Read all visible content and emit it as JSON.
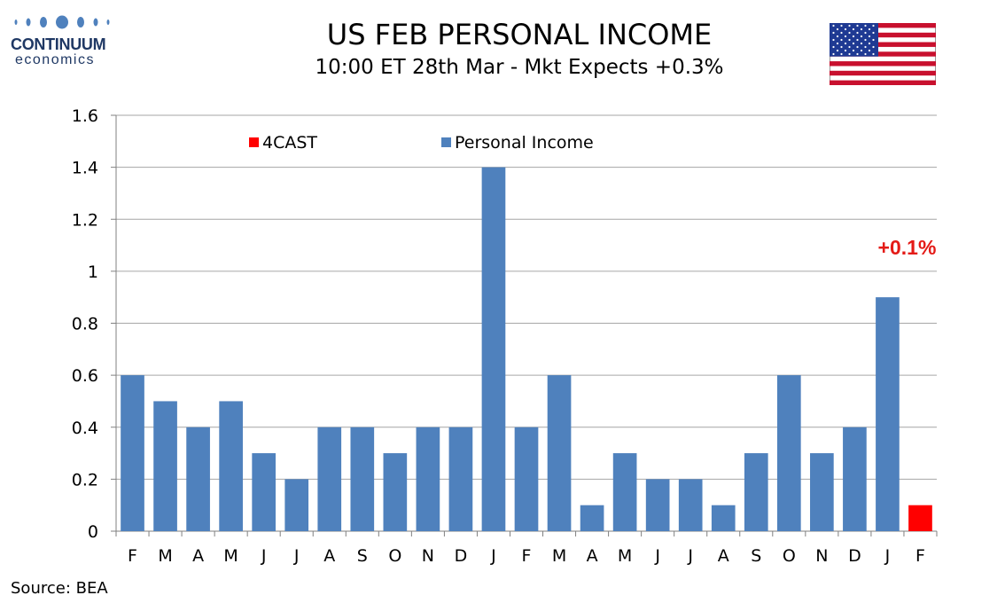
{
  "logo": {
    "name": "CONTINUUM",
    "sub": "economics"
  },
  "header": {
    "title": "US FEB PERSONAL INCOME",
    "subtitle": "10:00 ET 28th Mar - Mkt Expects +0.3%"
  },
  "source": "Source: BEA",
  "colors": {
    "series": "#4f81bd",
    "forecast": "#ff0000",
    "annotation": "#e41b17",
    "logo": "#1f3864"
  },
  "chart_data": {
    "type": "bar",
    "title": "US FEB PERSONAL INCOME",
    "categories": [
      "F",
      "M",
      "A",
      "M",
      "J",
      "J",
      "A",
      "S",
      "O",
      "N",
      "D",
      "J",
      "F",
      "M",
      "A",
      "M",
      "J",
      "J",
      "A",
      "S",
      "O",
      "N",
      "D",
      "J",
      "F"
    ],
    "series": [
      {
        "name": "Personal Income",
        "color": "#4f81bd",
        "values": [
          0.6,
          0.5,
          0.4,
          0.5,
          0.3,
          0.2,
          0.4,
          0.4,
          0.3,
          0.4,
          0.4,
          1.4,
          0.4,
          0.6,
          0.1,
          0.3,
          0.2,
          0.2,
          0.1,
          0.3,
          0.6,
          0.3,
          0.4,
          0.9,
          null
        ]
      },
      {
        "name": "4CAST",
        "color": "#ff0000",
        "values": [
          null,
          null,
          null,
          null,
          null,
          null,
          null,
          null,
          null,
          null,
          null,
          null,
          null,
          null,
          null,
          null,
          null,
          null,
          null,
          null,
          null,
          null,
          null,
          null,
          0.1
        ]
      }
    ],
    "ylim": [
      0,
      1.6
    ],
    "yticks": [
      "0",
      "0.2",
      "0.4",
      "0.6",
      "0.8",
      "1",
      "1.2",
      "1.4",
      "1.6"
    ],
    "ytick_values": [
      0,
      0.2,
      0.4,
      0.6,
      0.8,
      1,
      1.2,
      1.4,
      1.6
    ],
    "grid": true,
    "legend_position": "top",
    "annotation": {
      "text": "+0.1%"
    }
  }
}
